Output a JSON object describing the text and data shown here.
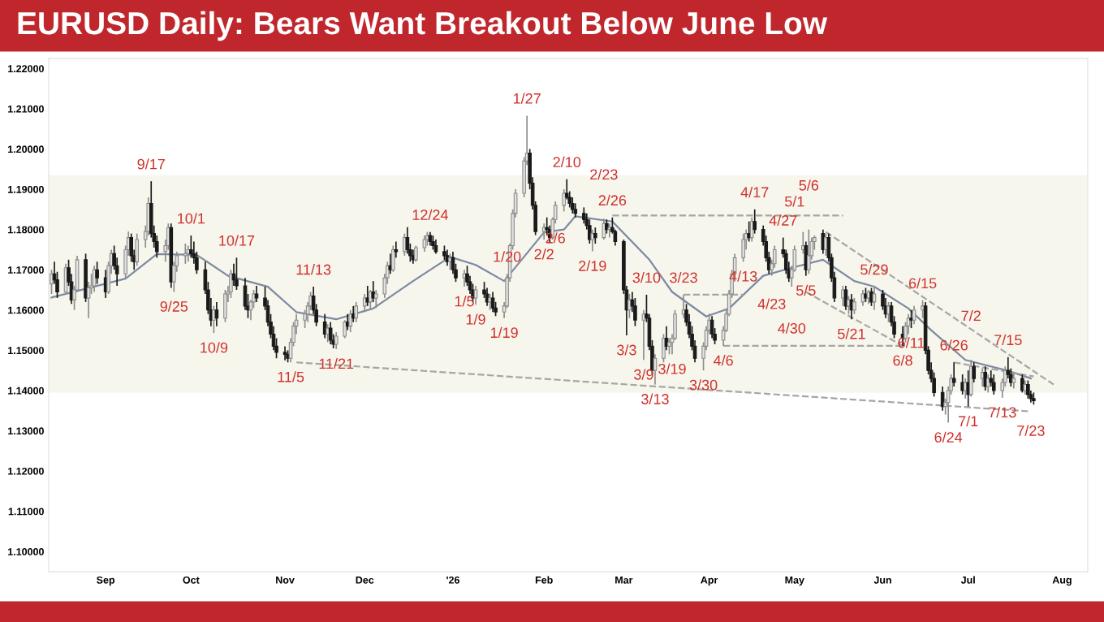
{
  "chart_data": {
    "type": "candlestick",
    "title": "EURUSD Daily: Bears Want Breakout Below June Low",
    "x": [
      "2025-08-13",
      "2025-08-14",
      "2025-08-15",
      "2025-08-18",
      "2025-08-19",
      "2025-08-20",
      "2025-08-21",
      "2025-08-22",
      "2025-08-25",
      "2025-08-26",
      "2025-08-27",
      "2025-08-28",
      "2025-08-29",
      "2025-09-01",
      "2025-09-02",
      "2025-09-03",
      "2025-09-04",
      "2025-09-05",
      "2025-09-08",
      "2025-09-09",
      "2025-09-10",
      "2025-09-11",
      "2025-09-12",
      "2025-09-15",
      "2025-09-16",
      "2025-09-17",
      "2025-09-18",
      "2025-09-19",
      "2025-09-22",
      "2025-09-23",
      "2025-09-24",
      "2025-09-25",
      "2025-09-26",
      "2025-09-29",
      "2025-09-30",
      "2025-10-01",
      "2025-10-02",
      "2025-10-03",
      "2025-10-06",
      "2025-10-07",
      "2025-10-08",
      "2025-10-09",
      "2025-10-10",
      "2025-10-13",
      "2025-10-14",
      "2025-10-15",
      "2025-10-16",
      "2025-10-17",
      "2025-10-20",
      "2025-10-21",
      "2025-10-22",
      "2025-10-23",
      "2025-10-24",
      "2025-10-27",
      "2025-10-28",
      "2025-10-29",
      "2025-10-30",
      "2025-10-31",
      "2025-11-03",
      "2025-11-04",
      "2025-11-05",
      "2025-11-06",
      "2025-11-07",
      "2025-11-10",
      "2025-11-11",
      "2025-11-12",
      "2025-11-13",
      "2025-11-14",
      "2025-11-17",
      "2025-11-18",
      "2025-11-19",
      "2025-11-20",
      "2025-11-21",
      "2025-11-24",
      "2025-11-25",
      "2025-11-26",
      "2025-11-27",
      "2025-11-28",
      "2025-12-01",
      "2025-12-02",
      "2025-12-03",
      "2025-12-04",
      "2025-12-05",
      "2025-12-08",
      "2025-12-09",
      "2025-12-10",
      "2025-12-11",
      "2025-12-12",
      "2025-12-15",
      "2025-12-16",
      "2025-12-17",
      "2025-12-18",
      "2025-12-19",
      "2025-12-22",
      "2025-12-23",
      "2025-12-24",
      "2025-12-25",
      "2025-12-26",
      "2025-12-29",
      "2025-12-30",
      "2025-12-31",
      "2026-01-01",
      "2026-01-02",
      "2026-01-05",
      "2026-01-06",
      "2026-01-07",
      "2026-01-08",
      "2026-01-09",
      "2026-01-12",
      "2026-01-13",
      "2026-01-14",
      "2026-01-15",
      "2026-01-16",
      "2026-01-19",
      "2026-01-20",
      "2026-01-21",
      "2026-01-22",
      "2026-01-23",
      "2026-01-26",
      "2026-01-27",
      "2026-01-28",
      "2026-01-29",
      "2026-01-30",
      "2026-02-02",
      "2026-02-03",
      "2026-02-04",
      "2026-02-05",
      "2026-02-06",
      "2026-02-09",
      "2026-02-10",
      "2026-02-11",
      "2026-02-12",
      "2026-02-13",
      "2026-02-16",
      "2026-02-17",
      "2026-02-18",
      "2026-02-19",
      "2026-02-20",
      "2026-02-23",
      "2026-02-24",
      "2026-02-25",
      "2026-02-26",
      "2026-02-27",
      "2026-03-02",
      "2026-03-03",
      "2026-03-04",
      "2026-03-05",
      "2026-03-06",
      "2026-03-09",
      "2026-03-10",
      "2026-03-11",
      "2026-03-12",
      "2026-03-13",
      "2026-03-16",
      "2026-03-17",
      "2026-03-18",
      "2026-03-19",
      "2026-03-20",
      "2026-03-23",
      "2026-03-24",
      "2026-03-25",
      "2026-03-26",
      "2026-03-27",
      "2026-03-30",
      "2026-03-31",
      "2026-04-01",
      "2026-04-02",
      "2026-04-03",
      "2026-04-06",
      "2026-04-07",
      "2026-04-08",
      "2026-04-09",
      "2026-04-10",
      "2026-04-13",
      "2026-04-14",
      "2026-04-15",
      "2026-04-16",
      "2026-04-17",
      "2026-04-20",
      "2026-04-21",
      "2026-04-22",
      "2026-04-23",
      "2026-04-24",
      "2026-04-27",
      "2026-04-28",
      "2026-04-29",
      "2026-04-30",
      "2026-05-01",
      "2026-05-04",
      "2026-05-05",
      "2026-05-06",
      "2026-05-07",
      "2026-05-08",
      "2026-05-11",
      "2026-05-12",
      "2026-05-13",
      "2026-05-14",
      "2026-05-15",
      "2026-05-18",
      "2026-05-19",
      "2026-05-20",
      "2026-05-21",
      "2026-05-22",
      "2026-05-25",
      "2026-05-26",
      "2026-05-27",
      "2026-05-28",
      "2026-05-29",
      "2026-06-01",
      "2026-06-02",
      "2026-06-03",
      "2026-06-04",
      "2026-06-05",
      "2026-06-08",
      "2026-06-09",
      "2026-06-10",
      "2026-06-11",
      "2026-06-12",
      "2026-06-15",
      "2026-06-16",
      "2026-06-17",
      "2026-06-18",
      "2026-06-19",
      "2026-06-22",
      "2026-06-23",
      "2026-06-24",
      "2026-06-25",
      "2026-06-26",
      "2026-06-29",
      "2026-06-30",
      "2026-07-01",
      "2026-07-02",
      "2026-07-03",
      "2026-07-06",
      "2026-07-07",
      "2026-07-08",
      "2026-07-09",
      "2026-07-10",
      "2026-07-13",
      "2026-07-14",
      "2026-07-15",
      "2026-07-16",
      "2026-07-17",
      "2026-07-20",
      "2026-07-21",
      "2026-07-22",
      "2026-07-23",
      "2026-07-24"
    ],
    "ohlc": [
      [
        1.1665,
        1.17,
        1.164,
        1.169
      ],
      [
        1.169,
        1.172,
        1.1665,
        1.1675
      ],
      [
        1.1675,
        1.1695,
        1.163,
        1.1645
      ],
      [
        1.1645,
        1.1715,
        1.164,
        1.1705
      ],
      [
        1.1705,
        1.1725,
        1.166,
        1.167
      ],
      [
        1.167,
        1.169,
        1.1615,
        1.1625
      ],
      [
        1.1625,
        1.166,
        1.16,
        1.165
      ],
      [
        1.165,
        1.1735,
        1.1645,
        1.1725
      ],
      [
        1.1725,
        1.174,
        1.162,
        1.163
      ],
      [
        1.163,
        1.167,
        1.158,
        1.1655
      ],
      [
        1.1655,
        1.169,
        1.164,
        1.166
      ],
      [
        1.166,
        1.171,
        1.1645,
        1.17
      ],
      [
        1.17,
        1.172,
        1.1665,
        1.168
      ],
      [
        1.168,
        1.17,
        1.163,
        1.1645
      ],
      [
        1.1645,
        1.172,
        1.164,
        1.171
      ],
      [
        1.171,
        1.175,
        1.169,
        1.174
      ],
      [
        1.174,
        1.176,
        1.17,
        1.171
      ],
      [
        1.171,
        1.173,
        1.166,
        1.169
      ],
      [
        1.169,
        1.176,
        1.168,
        1.175
      ],
      [
        1.175,
        1.1795,
        1.1735,
        1.178
      ],
      [
        1.178,
        1.179,
        1.172,
        1.1735
      ],
      [
        1.1735,
        1.175,
        1.17,
        1.172
      ],
      [
        1.172,
        1.179,
        1.171,
        1.1775
      ],
      [
        1.1775,
        1.181,
        1.1755,
        1.1795
      ],
      [
        1.1795,
        1.188,
        1.1785,
        1.1865
      ],
      [
        1.1865,
        1.192,
        1.178,
        1.179
      ],
      [
        1.179,
        1.181,
        1.1755,
        1.177
      ],
      [
        1.177,
        1.1785,
        1.173,
        1.1745
      ],
      [
        1.1745,
        1.1775,
        1.172,
        1.176
      ],
      [
        1.176,
        1.1815,
        1.175,
        1.1805
      ],
      [
        1.1805,
        1.1815,
        1.1655,
        1.167
      ],
      [
        1.167,
        1.172,
        1.1645,
        1.171
      ],
      [
        1.171,
        1.1745,
        1.1695,
        1.1735
      ],
      [
        1.1735,
        1.1765,
        1.1715,
        1.174
      ],
      [
        1.174,
        1.176,
        1.172,
        1.175
      ],
      [
        1.175,
        1.1785,
        1.173,
        1.174
      ],
      [
        1.174,
        1.177,
        1.1715,
        1.173
      ],
      [
        1.173,
        1.1745,
        1.169,
        1.17
      ],
      [
        1.17,
        1.172,
        1.164,
        1.165
      ],
      [
        1.165,
        1.167,
        1.159,
        1.16
      ],
      [
        1.16,
        1.163,
        1.156,
        1.1575
      ],
      [
        1.1575,
        1.161,
        1.1543,
        1.16
      ],
      [
        1.16,
        1.162,
        1.156,
        1.158
      ],
      [
        1.158,
        1.165,
        1.157,
        1.164
      ],
      [
        1.164,
        1.166,
        1.162,
        1.1645
      ],
      [
        1.1645,
        1.17,
        1.163,
        1.169
      ],
      [
        1.169,
        1.1715,
        1.166,
        1.1675
      ],
      [
        1.1675,
        1.173,
        1.165,
        1.166
      ],
      [
        1.166,
        1.168,
        1.16,
        1.161
      ],
      [
        1.161,
        1.164,
        1.158,
        1.16
      ],
      [
        1.16,
        1.1625,
        1.1575,
        1.162
      ],
      [
        1.162,
        1.165,
        1.1605,
        1.164
      ],
      [
        1.164,
        1.166,
        1.162,
        1.163
      ],
      [
        1.163,
        1.1658,
        1.16,
        1.161
      ],
      [
        1.161,
        1.1625,
        1.156,
        1.157
      ],
      [
        1.157,
        1.159,
        1.153,
        1.154
      ],
      [
        1.154,
        1.156,
        1.15,
        1.151
      ],
      [
        1.151,
        1.153,
        1.148,
        1.1495
      ],
      [
        1.1495,
        1.151,
        1.1475,
        1.149
      ],
      [
        1.149,
        1.15,
        1.147,
        1.148
      ],
      [
        1.148,
        1.153,
        1.147,
        1.152
      ],
      [
        1.152,
        1.157,
        1.151,
        1.156
      ],
      [
        1.156,
        1.159,
        1.154,
        1.1575
      ],
      [
        1.1575,
        1.16,
        1.1555,
        1.159
      ],
      [
        1.159,
        1.162,
        1.157,
        1.161
      ],
      [
        1.161,
        1.1645,
        1.16,
        1.1635
      ],
      [
        1.1635,
        1.1658,
        1.159,
        1.16
      ],
      [
        1.16,
        1.1615,
        1.156,
        1.157
      ],
      [
        1.157,
        1.159,
        1.153,
        1.154
      ],
      [
        1.154,
        1.1565,
        1.152,
        1.1555
      ],
      [
        1.1555,
        1.157,
        1.1515,
        1.1525
      ],
      [
        1.1525,
        1.154,
        1.1505,
        1.1515
      ],
      [
        1.1515,
        1.1545,
        1.1503,
        1.1535
      ],
      [
        1.1535,
        1.1575,
        1.153,
        1.157
      ],
      [
        1.157,
        1.159,
        1.155,
        1.156
      ],
      [
        1.156,
        1.16,
        1.1545,
        1.159
      ],
      [
        1.159,
        1.161,
        1.157,
        1.158
      ],
      [
        1.158,
        1.162,
        1.157,
        1.161
      ],
      [
        1.161,
        1.164,
        1.1595,
        1.163
      ],
      [
        1.163,
        1.166,
        1.161,
        1.162
      ],
      [
        1.162,
        1.165,
        1.16,
        1.1645
      ],
      [
        1.1645,
        1.1672,
        1.162,
        1.163
      ],
      [
        1.163,
        1.165,
        1.1605,
        1.164
      ],
      [
        1.164,
        1.169,
        1.163,
        1.168
      ],
      [
        1.168,
        1.172,
        1.1665,
        1.171
      ],
      [
        1.171,
        1.174,
        1.169,
        1.17
      ],
      [
        1.17,
        1.176,
        1.1695,
        1.175
      ],
      [
        1.175,
        1.177,
        1.173,
        1.1745
      ],
      [
        1.1745,
        1.179,
        1.1735,
        1.178
      ],
      [
        1.178,
        1.1806,
        1.174,
        1.175
      ],
      [
        1.175,
        1.1765,
        1.172,
        1.1735
      ],
      [
        1.1735,
        1.175,
        1.1715,
        1.1725
      ],
      [
        1.1725,
        1.176,
        1.172,
        1.1755
      ],
      [
        1.1755,
        1.1785,
        1.1745,
        1.1775
      ],
      [
        1.1775,
        1.1794,
        1.176,
        1.1785
      ],
      [
        1.1785,
        1.1794,
        1.176,
        1.177
      ],
      [
        1.177,
        1.1785,
        1.175,
        1.176
      ],
      [
        1.176,
        1.1775,
        1.174,
        1.1745
      ],
      [
        1.1745,
        1.176,
        1.1725,
        1.1735
      ],
      [
        1.1735,
        1.175,
        1.171,
        1.172
      ],
      [
        1.172,
        1.174,
        1.17,
        1.173
      ],
      [
        1.173,
        1.1745,
        1.169,
        1.17
      ],
      [
        1.17,
        1.1715,
        1.167,
        1.168
      ],
      [
        1.168,
        1.17,
        1.1658,
        1.169
      ],
      [
        1.169,
        1.171,
        1.166,
        1.167
      ],
      [
        1.167,
        1.1685,
        1.164,
        1.165
      ],
      [
        1.165,
        1.1665,
        1.162,
        1.163
      ],
      [
        1.163,
        1.166,
        1.1613,
        1.165
      ],
      [
        1.165,
        1.167,
        1.163,
        1.164
      ],
      [
        1.164,
        1.1655,
        1.161,
        1.162
      ],
      [
        1.162,
        1.164,
        1.16,
        1.163
      ],
      [
        1.163,
        1.1645,
        1.1595,
        1.1605
      ],
      [
        1.1605,
        1.162,
        1.1585,
        1.1595
      ],
      [
        1.1595,
        1.162,
        1.158,
        1.161
      ],
      [
        1.161,
        1.169,
        1.1605,
        1.168
      ],
      [
        1.168,
        1.1765,
        1.167,
        1.176
      ],
      [
        1.176,
        1.185,
        1.175,
        1.184
      ],
      [
        1.184,
        1.19,
        1.183,
        1.189
      ],
      [
        1.189,
        1.198,
        1.188,
        1.197
      ],
      [
        1.197,
        1.2083,
        1.196,
        1.199
      ],
      [
        1.199,
        1.2,
        1.19,
        1.1915
      ],
      [
        1.1915,
        1.193,
        1.185,
        1.186
      ],
      [
        1.186,
        1.187,
        1.1786,
        1.1795
      ],
      [
        1.1795,
        1.1815,
        1.1775,
        1.1805
      ],
      [
        1.1805,
        1.183,
        1.1785,
        1.18
      ],
      [
        1.18,
        1.181,
        1.1766,
        1.178
      ],
      [
        1.178,
        1.183,
        1.1775,
        1.1825
      ],
      [
        1.1825,
        1.187,
        1.1815,
        1.186
      ],
      [
        1.186,
        1.19,
        1.1845,
        1.189
      ],
      [
        1.189,
        1.1925,
        1.1875,
        1.188
      ],
      [
        1.188,
        1.1895,
        1.1855,
        1.1865
      ],
      [
        1.1865,
        1.188,
        1.184,
        1.185
      ],
      [
        1.185,
        1.1865,
        1.183,
        1.184
      ],
      [
        1.184,
        1.1855,
        1.1815,
        1.1825
      ],
      [
        1.1825,
        1.184,
        1.18,
        1.181
      ],
      [
        1.181,
        1.1825,
        1.1765,
        1.1775
      ],
      [
        1.1775,
        1.18,
        1.1746,
        1.179
      ],
      [
        1.179,
        1.1805,
        1.1765,
        1.178
      ],
      [
        1.178,
        1.1827,
        1.1775,
        1.1815
      ],
      [
        1.1815,
        1.1825,
        1.179,
        1.18
      ],
      [
        1.18,
        1.1815,
        1.178,
        1.1805
      ],
      [
        1.1805,
        1.183,
        1.179,
        1.1795
      ],
      [
        1.1795,
        1.18,
        1.176,
        1.177
      ],
      [
        1.177,
        1.1775,
        1.164,
        1.165
      ],
      [
        1.165,
        1.166,
        1.1537,
        1.16
      ],
      [
        1.16,
        1.164,
        1.158,
        1.1625
      ],
      [
        1.1625,
        1.1645,
        1.1595,
        1.161
      ],
      [
        1.161,
        1.163,
        1.156,
        1.1575
      ],
      [
        1.1575,
        1.16,
        1.1476,
        1.159
      ],
      [
        1.159,
        1.1638,
        1.157,
        1.158
      ],
      [
        1.158,
        1.159,
        1.15,
        1.151
      ],
      [
        1.151,
        1.1525,
        1.144,
        1.145
      ],
      [
        1.145,
        1.149,
        1.1415,
        1.148
      ],
      [
        1.148,
        1.154,
        1.147,
        1.153
      ],
      [
        1.153,
        1.156,
        1.15,
        1.151
      ],
      [
        1.151,
        1.153,
        1.149,
        1.152
      ],
      [
        1.152,
        1.154,
        1.149,
        1.153
      ],
      [
        1.153,
        1.16,
        1.1525,
        1.159
      ],
      [
        1.159,
        1.1638,
        1.158,
        1.16
      ],
      [
        1.16,
        1.1615,
        1.156,
        1.157
      ],
      [
        1.157,
        1.159,
        1.153,
        1.154
      ],
      [
        1.154,
        1.156,
        1.15,
        1.151
      ],
      [
        1.151,
        1.1525,
        1.147,
        1.148
      ],
      [
        1.148,
        1.152,
        1.145,
        1.151
      ],
      [
        1.151,
        1.156,
        1.15,
        1.155
      ],
      [
        1.155,
        1.1591,
        1.154,
        1.1575
      ],
      [
        1.1575,
        1.1585,
        1.153,
        1.154
      ],
      [
        1.154,
        1.1555,
        1.1515,
        1.1525
      ],
      [
        1.1525,
        1.156,
        1.1511,
        1.155
      ],
      [
        1.155,
        1.16,
        1.1545,
        1.159
      ],
      [
        1.159,
        1.165,
        1.1585,
        1.164
      ],
      [
        1.164,
        1.17,
        1.163,
        1.169
      ],
      [
        1.169,
        1.174,
        1.168,
        1.173
      ],
      [
        1.173,
        1.179,
        1.172,
        1.1775
      ],
      [
        1.1775,
        1.18,
        1.175,
        1.179
      ],
      [
        1.179,
        1.182,
        1.177,
        1.178
      ],
      [
        1.178,
        1.183,
        1.177,
        1.182
      ],
      [
        1.182,
        1.185,
        1.179,
        1.18
      ],
      [
        1.18,
        1.181,
        1.176,
        1.177
      ],
      [
        1.177,
        1.1785,
        1.172,
        1.173
      ],
      [
        1.173,
        1.1745,
        1.169,
        1.17
      ],
      [
        1.17,
        1.1725,
        1.1685,
        1.1715
      ],
      [
        1.1715,
        1.176,
        1.1705,
        1.175
      ],
      [
        1.175,
        1.178,
        1.173,
        1.174
      ],
      [
        1.174,
        1.175,
        1.169,
        1.17
      ],
      [
        1.17,
        1.172,
        1.167,
        1.168
      ],
      [
        1.168,
        1.171,
        1.1658,
        1.17
      ],
      [
        1.17,
        1.176,
        1.1695,
        1.175
      ],
      [
        1.175,
        1.1794,
        1.174,
        1.176
      ],
      [
        1.176,
        1.177,
        1.1685,
        1.17
      ],
      [
        1.17,
        1.18,
        1.169,
        1.1735
      ],
      [
        1.1735,
        1.178,
        1.1725,
        1.177
      ],
      [
        1.177,
        1.1785,
        1.175,
        1.178
      ],
      [
        1.179,
        1.18,
        1.174,
        1.175
      ],
      [
        1.175,
        1.179,
        1.1735,
        1.178
      ],
      [
        1.178,
        1.179,
        1.172,
        1.173
      ],
      [
        1.173,
        1.174,
        1.167,
        1.168
      ],
      [
        1.168,
        1.1695,
        1.162,
        1.163
      ],
      [
        1.163,
        1.166,
        1.161,
        1.165
      ],
      [
        1.165,
        1.166,
        1.16,
        1.161
      ],
      [
        1.161,
        1.1635,
        1.159,
        1.1625
      ],
      [
        1.1625,
        1.164,
        1.1577,
        1.16
      ],
      [
        1.16,
        1.163,
        1.159,
        1.162
      ],
      [
        1.162,
        1.165,
        1.161,
        1.164
      ],
      [
        1.164,
        1.1655,
        1.162,
        1.163
      ],
      [
        1.163,
        1.165,
        1.1615,
        1.1645
      ],
      [
        1.1645,
        1.1655,
        1.161,
        1.162
      ],
      [
        1.162,
        1.1658,
        1.16,
        1.164
      ],
      [
        1.164,
        1.165,
        1.16,
        1.161
      ],
      [
        1.161,
        1.163,
        1.158,
        1.159
      ],
      [
        1.159,
        1.162,
        1.157,
        1.161
      ],
      [
        1.161,
        1.162,
        1.156,
        1.157
      ],
      [
        1.157,
        1.1585,
        1.153,
        1.154
      ],
      [
        1.154,
        1.156,
        1.1511,
        1.153
      ],
      [
        1.153,
        1.157,
        1.152,
        1.156
      ],
      [
        1.156,
        1.159,
        1.154,
        1.158
      ],
      [
        1.158,
        1.16,
        1.1555,
        1.1575
      ],
      [
        1.1575,
        1.161,
        1.1565,
        1.16
      ],
      [
        1.16,
        1.1624,
        1.158,
        1.161
      ],
      [
        1.161,
        1.162,
        1.149,
        1.15
      ],
      [
        1.15,
        1.151,
        1.144,
        1.145
      ],
      [
        1.145,
        1.147,
        1.142,
        1.143
      ],
      [
        1.143,
        1.1445,
        1.1385,
        1.1395
      ],
      [
        1.1395,
        1.141,
        1.135,
        1.136
      ],
      [
        1.136,
        1.138,
        1.134,
        1.137
      ],
      [
        1.137,
        1.141,
        1.132,
        1.14
      ],
      [
        1.14,
        1.144,
        1.139,
        1.143
      ],
      [
        1.143,
        1.147,
        1.141,
        1.142
      ],
      [
        1.142,
        1.144,
        1.139,
        1.14
      ],
      [
        1.14,
        1.143,
        1.138,
        1.142
      ],
      [
        1.142,
        1.145,
        1.136,
        1.139
      ],
      [
        1.139,
        1.1476,
        1.1385,
        1.146
      ],
      [
        1.146,
        1.147,
        1.142,
        1.143
      ],
      [
        1.143,
        1.1455,
        1.141,
        1.1445
      ],
      [
        1.1445,
        1.146,
        1.14,
        1.141
      ],
      [
        1.141,
        1.144,
        1.1395,
        1.143
      ],
      [
        1.143,
        1.145,
        1.141,
        1.142
      ],
      [
        1.142,
        1.144,
        1.139,
        1.14
      ],
      [
        1.14,
        1.143,
        1.1382,
        1.142
      ],
      [
        1.142,
        1.146,
        1.141,
        1.145
      ],
      [
        1.145,
        1.1483,
        1.143,
        1.144
      ],
      [
        1.144,
        1.1455,
        1.141,
        1.142
      ],
      [
        1.142,
        1.1445,
        1.1405,
        1.143
      ],
      [
        1.143,
        1.144,
        1.1395,
        1.14
      ],
      [
        1.14,
        1.1425,
        1.139,
        1.1415
      ],
      [
        1.1415,
        1.1425,
        1.138,
        1.139
      ],
      [
        1.139,
        1.14,
        1.137,
        1.138
      ],
      [
        1.138,
        1.1395,
        1.1365,
        1.1375
      ]
    ],
    "series": [
      {
        "type": "line",
        "color": "#7d8aa3",
        "line_style": "solid",
        "x": [
          "2025-08-13",
          "2025-09-08",
          "2025-09-19",
          "2025-10-03",
          "2025-10-14",
          "2025-10-28",
          "2025-11-07",
          "2025-11-21",
          "2025-12-04",
          "2025-12-18",
          "2025-12-31",
          "2026-01-09",
          "2026-01-19",
          "2026-02-02",
          "2026-02-09",
          "2026-02-13",
          "2026-02-26",
          "2026-03-11",
          "2026-03-19",
          "2026-03-31",
          "2026-04-08",
          "2026-04-20",
          "2026-04-30",
          "2026-05-11",
          "2026-05-22",
          "2026-05-29",
          "2026-06-10",
          "2026-06-18",
          "2026-06-30",
          "2026-07-15",
          "2026-07-23"
        ],
        "values": [
          1.1631,
          1.1678,
          1.1739,
          1.1737,
          1.1685,
          1.1658,
          1.1595,
          1.1577,
          1.1604,
          1.1672,
          1.1732,
          1.1712,
          1.1672,
          1.1793,
          1.18,
          1.1833,
          1.182,
          1.1725,
          1.1645,
          1.1584,
          1.1604,
          1.1685,
          1.1705,
          1.1725,
          1.1672,
          1.1658,
          1.1604,
          1.155,
          1.1476,
          1.1449,
          1.143
        ]
      },
      {
        "type": "line",
        "color": "#a6a6a6",
        "line_style": "dashed",
        "x": [
          "2025-11-07",
          "2026-07-23"
        ],
        "values": [
          1.147,
          1.1348
        ]
      },
      {
        "type": "line",
        "color": "#a6a6a6",
        "line_style": "dashed",
        "x": [
          "2026-02-26",
          "2026-05-18"
        ],
        "values": [
          1.1835,
          1.1835
        ]
      },
      {
        "type": "line",
        "color": "#a6a6a6",
        "line_style": "dashed",
        "x": [
          "2026-03-23",
          "2026-04-13"
        ],
        "values": [
          1.1638,
          1.1638
        ]
      },
      {
        "type": "line",
        "color": "#a6a6a6",
        "line_style": "dashed",
        "x": [
          "2026-04-06",
          "2026-06-08"
        ],
        "values": [
          1.1511,
          1.1511
        ]
      },
      {
        "type": "line",
        "color": "#a6a6a6",
        "line_style": "dashed",
        "x": [
          "2026-05-12",
          "2026-07-31"
        ],
        "values": [
          1.1794,
          1.1415
        ]
      },
      {
        "type": "line",
        "color": "#a6a6a6",
        "line_style": "dashed",
        "x": [
          "2026-05-05",
          "2026-06-08"
        ],
        "values": [
          1.1645,
          1.1511
        ]
      },
      {
        "type": "line",
        "color": "#a6a6a6",
        "line_style": "dashed",
        "x": [
          "2026-06-26",
          "2026-07-24"
        ],
        "values": [
          1.147,
          1.1435
        ]
      }
    ],
    "bands": [
      {
        "axis": "y",
        "from": 1.1395,
        "to": 1.1935,
        "color": "#f6f6ec"
      }
    ],
    "annotations": [
      {
        "text": "9/17",
        "x": "2025-09-17",
        "y": 1.192
      },
      {
        "text": "10/1",
        "x": "2025-10-01",
        "y": 1.1785
      },
      {
        "text": "10/17",
        "x": "2025-10-17",
        "y": 1.173
      },
      {
        "text": "9/25",
        "x": "2025-09-25",
        "y": 1.1645
      },
      {
        "text": "10/9",
        "x": "2025-10-09",
        "y": 1.1543
      },
      {
        "text": "11/5",
        "x": "2025-11-05",
        "y": 1.147
      },
      {
        "text": "11/13",
        "x": "2025-11-13",
        "y": 1.1658
      },
      {
        "text": "11/21",
        "x": "2025-11-21",
        "y": 1.1503
      },
      {
        "text": "12/24",
        "x": "2025-12-24",
        "y": 1.1794
      },
      {
        "text": "1/20",
        "x": "2026-01-20",
        "y": 1.169
      },
      {
        "text": "1/27",
        "x": "2026-01-27",
        "y": 1.2083
      },
      {
        "text": "1/5",
        "x": "2026-01-05",
        "y": 1.1658
      },
      {
        "text": "1/9",
        "x": "2026-01-09",
        "y": 1.1613
      },
      {
        "text": "1/19",
        "x": "2026-01-19",
        "y": 1.158
      },
      {
        "text": "2/2",
        "x": "2026-02-02",
        "y": 1.1775
      },
      {
        "text": "2/10",
        "x": "2026-02-10",
        "y": 1.1925
      },
      {
        "text": "2/6",
        "x": "2026-02-06",
        "y": 1.1815
      },
      {
        "text": "2/26",
        "x": "2026-02-26",
        "y": 1.183
      },
      {
        "text": "2/23",
        "x": "2026-02-23",
        "y": 1.1827
      },
      {
        "text": "2/19",
        "x": "2026-02-19",
        "y": 1.1746
      },
      {
        "text": "3/10",
        "x": "2026-03-10",
        "y": 1.1638
      },
      {
        "text": "3/23",
        "x": "2026-03-23",
        "y": 1.1638
      },
      {
        "text": "3/3",
        "x": "2026-03-03",
        "y": 1.1537
      },
      {
        "text": "3/9",
        "x": "2026-03-09",
        "y": 1.1476
      },
      {
        "text": "3/19",
        "x": "2026-03-19",
        "y": 1.149
      },
      {
        "text": "3/13",
        "x": "2026-03-13",
        "y": 1.1415
      },
      {
        "text": "3/30",
        "x": "2026-03-30",
        "y": 1.145
      },
      {
        "text": "4/6",
        "x": "2026-04-06",
        "y": 1.1511
      },
      {
        "text": "4/17",
        "x": "2026-04-17",
        "y": 1.185
      },
      {
        "text": "4/27",
        "x": "2026-04-27",
        "y": 1.178
      },
      {
        "text": "4/13",
        "x": "2026-04-13",
        "y": 1.172
      },
      {
        "text": "4/23",
        "x": "2026-04-23",
        "y": 1.1685
      },
      {
        "text": "4/30",
        "x": "2026-04-30",
        "y": 1.1658
      },
      {
        "text": "5/1",
        "x": "2026-05-01",
        "y": 1.176
      },
      {
        "text": "5/5",
        "x": "2026-05-05",
        "y": 1.1685
      },
      {
        "text": "5/6",
        "x": "2026-05-06",
        "y": 1.18
      },
      {
        "text": "5/29",
        "x": "2026-05-29",
        "y": 1.1658
      },
      {
        "text": "6/15",
        "x": "2026-06-15",
        "y": 1.1624
      },
      {
        "text": "5/21",
        "x": "2026-05-21",
        "y": 1.1577
      },
      {
        "text": "6/8",
        "x": "2026-06-08",
        "y": 1.1511
      },
      {
        "text": "6/11",
        "x": "2026-06-11",
        "y": 1.1555
      },
      {
        "text": "6/26",
        "x": "2026-06-26",
        "y": 1.147
      },
      {
        "text": "7/2",
        "x": "2026-07-02",
        "y": 1.1476
      },
      {
        "text": "7/15",
        "x": "2026-07-15",
        "y": 1.1483
      },
      {
        "text": "7/1",
        "x": "2026-07-01",
        "y": 1.136
      },
      {
        "text": "7/13",
        "x": "2026-07-13",
        "y": 1.1382
      },
      {
        "text": "6/24",
        "x": "2026-06-24",
        "y": 1.132
      },
      {
        "text": "7/23",
        "x": "2026-07-23",
        "y": 1.137
      }
    ],
    "xlim": [
      "2025-08-12",
      "2026-08-12"
    ],
    "ylim": [
      1.095,
      1.2225
    ],
    "xticks": [
      {
        "value": "2025-09-01",
        "label": "Sep"
      },
      {
        "value": "2025-10-01",
        "label": "Oct"
      },
      {
        "value": "2025-11-03",
        "label": "Nov"
      },
      {
        "value": "2025-12-01",
        "label": "Dec"
      },
      {
        "value": "2026-01-01",
        "label": "'26"
      },
      {
        "value": "2026-02-02",
        "label": "Feb"
      },
      {
        "value": "2026-03-02",
        "label": "Mar"
      },
      {
        "value": "2026-04-01",
        "label": "Apr"
      },
      {
        "value": "2026-05-01",
        "label": "May"
      },
      {
        "value": "2026-06-01",
        "label": "Jun"
      },
      {
        "value": "2026-07-01",
        "label": "Jul"
      },
      {
        "value": "2026-08-03",
        "label": "Aug"
      }
    ],
    "yticks": [
      {
        "value": 1.1,
        "label": "1.10000"
      },
      {
        "value": 1.11,
        "label": "1.11000"
      },
      {
        "value": 1.12,
        "label": "1.12000"
      },
      {
        "value": 1.13,
        "label": "1.13000"
      },
      {
        "value": 1.14,
        "label": "1.14000"
      },
      {
        "value": 1.15,
        "label": "1.15000"
      },
      {
        "value": 1.16,
        "label": "1.16000"
      },
      {
        "value": 1.17,
        "label": "1.17000"
      },
      {
        "value": 1.18,
        "label": "1.18000"
      },
      {
        "value": 1.19,
        "label": "1.19000"
      },
      {
        "value": 1.2,
        "label": "1.20000"
      },
      {
        "value": 1.21,
        "label": "1.21000"
      },
      {
        "value": 1.22,
        "label": "1.22000"
      }
    ],
    "grid": false,
    "legend": false
  }
}
